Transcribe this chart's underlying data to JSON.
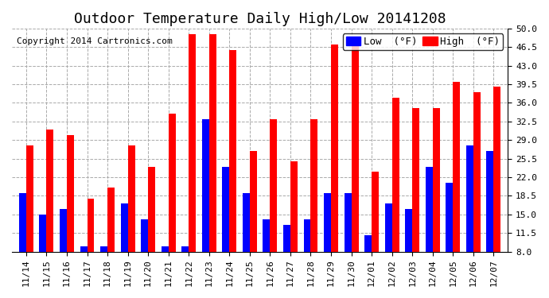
{
  "title": "Outdoor Temperature Daily High/Low 20141208",
  "copyright": "Copyright 2014 Cartronics.com",
  "legend_low": "Low  (°F)",
  "legend_high": "High  (°F)",
  "categories": [
    "11/14",
    "11/15",
    "11/16",
    "11/17",
    "11/18",
    "11/19",
    "11/20",
    "11/21",
    "11/22",
    "11/23",
    "11/24",
    "11/25",
    "11/26",
    "11/27",
    "11/28",
    "11/29",
    "11/30",
    "12/01",
    "12/02",
    "12/03",
    "12/04",
    "12/05",
    "12/06",
    "12/07"
  ],
  "low": [
    19,
    15,
    16,
    9,
    9,
    17,
    14,
    9,
    9,
    33,
    24,
    19,
    14,
    13,
    14,
    19,
    19,
    11,
    17,
    16,
    24,
    21,
    28,
    27
  ],
  "high": [
    28,
    31,
    30,
    18,
    20,
    28,
    24,
    34,
    49,
    49,
    46,
    27,
    33,
    25,
    33,
    47,
    47,
    23,
    37,
    35,
    35,
    40,
    38,
    39
  ],
  "ylim_min": 8.0,
  "ylim_max": 50.0,
  "yticks": [
    8.0,
    11.5,
    15.0,
    18.5,
    22.0,
    25.5,
    29.0,
    32.5,
    36.0,
    39.5,
    43.0,
    46.5,
    50.0
  ],
  "bar_width": 0.35,
  "low_color": "#0000ff",
  "high_color": "#ff0000",
  "bg_color": "#ffffff",
  "grid_color": "#aaaaaa",
  "title_fontsize": 13,
  "copyright_fontsize": 8,
  "tick_fontsize": 8,
  "legend_fontsize": 9
}
